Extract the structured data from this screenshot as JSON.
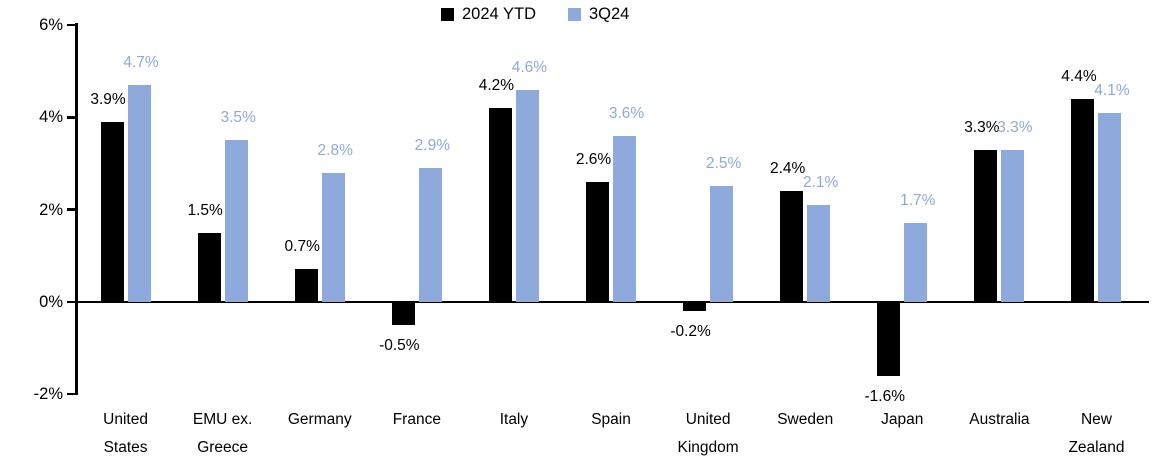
{
  "chart_data": {
    "type": "bar",
    "title": "",
    "categories": [
      "United States",
      "EMU ex. Greece",
      "Germany",
      "France",
      "Italy",
      "Spain",
      "United Kingdom",
      "Sweden",
      "Japan",
      "Australia",
      "New Zealand"
    ],
    "series": [
      {
        "name": "2024 YTD",
        "color": "#000000",
        "values": [
          3.9,
          1.5,
          0.7,
          -0.5,
          4.2,
          2.6,
          -0.2,
          2.4,
          -1.6,
          3.3,
          4.4
        ]
      },
      {
        "name": "3Q24",
        "color": "#8EA9DB",
        "values": [
          4.7,
          3.5,
          2.8,
          2.9,
          4.6,
          3.6,
          2.5,
          2.1,
          1.7,
          3.3,
          4.1
        ]
      }
    ],
    "value_suffix": "%",
    "data_labels": true,
    "ylim": [
      -2,
      6
    ],
    "y_ticks": [
      {
        "label": "6%",
        "value": 6
      },
      {
        "label": "4%",
        "value": 4
      },
      {
        "label": "2%",
        "value": 2
      },
      {
        "label": "0%",
        "value": 0
      },
      {
        "label": "-2%",
        "value": -2
      }
    ],
    "grid": false,
    "legend_position": "top-center",
    "colors": {
      "series1": "#000000",
      "series2": "#8EA9DB",
      "axis": "#000000",
      "background": "#FFFFFF"
    }
  }
}
